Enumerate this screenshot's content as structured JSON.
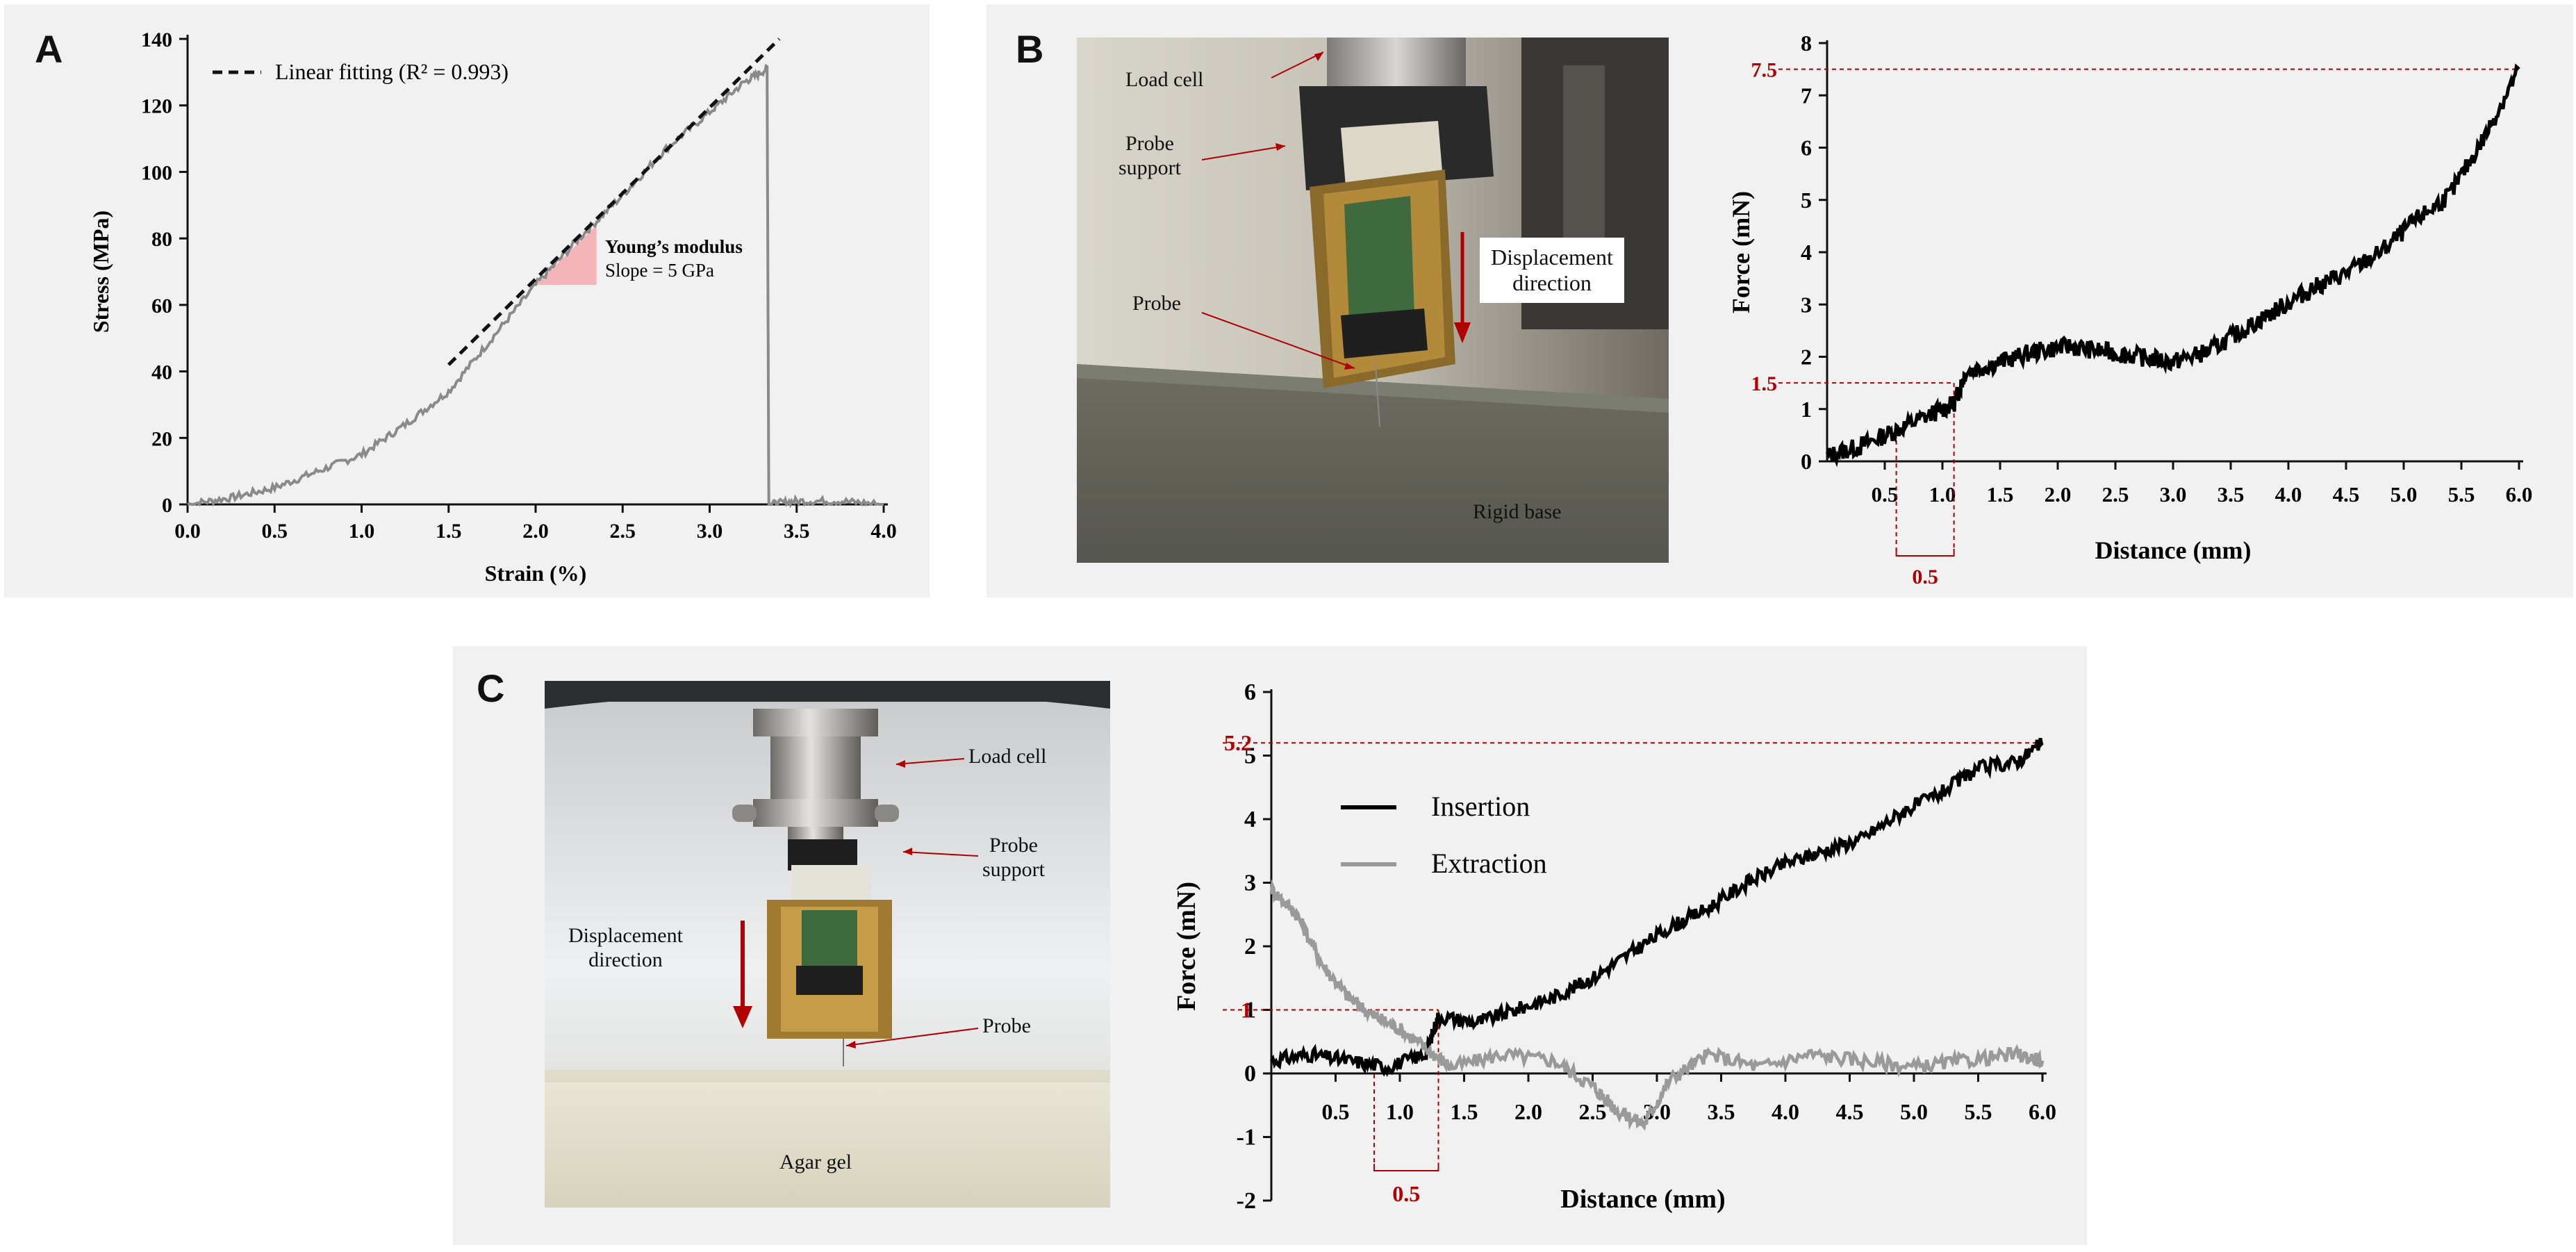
{
  "panels": {
    "a": "A",
    "b": "B",
    "c": "C"
  },
  "colors": {
    "accent_red": "#b00000",
    "fit_line": "#111111",
    "stress_curve": "#8a8a8a",
    "insertion": "#000000",
    "extraction": "#9a9a9a",
    "wedge": "#f4b5b8"
  },
  "photo_b": {
    "load_cell": "Load cell",
    "probe_support_line1": "Probe",
    "probe_support_line2": "support",
    "probe": "Probe",
    "displacement_line1": "Displacement",
    "displacement_line2": "direction",
    "rigid_base": "Rigid base"
  },
  "photo_c": {
    "load_cell": "Load cell",
    "probe_support_line1": "Probe",
    "probe_support_line2": "support",
    "displacement_line1": "Displacement",
    "displacement_line2": "direction",
    "probe": "Probe",
    "agar_gel": "Agar gel"
  },
  "chart_data": [
    {
      "id": "A",
      "type": "line",
      "title": "",
      "xlabel": "Strain (%)",
      "ylabel": "Stress (MPa)",
      "xlim": [
        0,
        4.0
      ],
      "ylim": [
        0,
        140
      ],
      "xticks": [
        "0.0",
        "0.5",
        "1.0",
        "1.5",
        "2.0",
        "2.5",
        "3.0",
        "3.5",
        "4.0"
      ],
      "yticks": [
        "0",
        "20",
        "40",
        "60",
        "80",
        "100",
        "120",
        "140"
      ],
      "legend": {
        "position": "top-left",
        "entries": [
          "Linear fitting (R² = 0.993)"
        ]
      },
      "annotation": {
        "title": "Young’s modulus",
        "subtitle": "Slope = 5 GPa"
      },
      "fit_line": {
        "x": [
          1.5,
          3.4
        ],
        "y": [
          42,
          140
        ]
      },
      "series": [
        {
          "x": [
            0.0,
            0.25,
            0.5,
            0.75,
            1.0,
            1.25,
            1.5,
            1.75,
            2.0,
            2.25,
            2.5,
            2.75,
            3.0,
            3.2,
            3.33,
            3.34,
            3.5,
            3.75,
            4.0
          ],
          "y": [
            0,
            2,
            5,
            10,
            15,
            24,
            34,
            50,
            66,
            80,
            93,
            107,
            118,
            127,
            131,
            0,
            1,
            1,
            0
          ]
        }
      ]
    },
    {
      "id": "B",
      "type": "line",
      "title": "",
      "xlabel": "Distance (mm)",
      "ylabel": "Force (mN)",
      "xlim": [
        0,
        6.0
      ],
      "ylim": [
        0,
        8
      ],
      "xticks": [
        "0.5",
        "1.0",
        "1.5",
        "2.0",
        "2.5",
        "3.0",
        "3.5",
        "4.0",
        "4.5",
        "5.0",
        "5.5",
        "6.0"
      ],
      "yticks": [
        "0",
        "1",
        "2",
        "3",
        "4",
        "5",
        "6",
        "7",
        "8"
      ],
      "hlines": [
        {
          "y": 7.5,
          "label": "7.5"
        },
        {
          "y": 1.5,
          "label": "1.5"
        }
      ],
      "span": {
        "x0": 0.6,
        "x1": 1.1,
        "label": "0.5"
      },
      "series": [
        {
          "x": [
            0.0,
            0.3,
            0.6,
            0.9,
            1.1,
            1.2,
            1.5,
            1.8,
            2.1,
            2.4,
            2.7,
            3.0,
            3.3,
            3.6,
            3.9,
            4.2,
            4.5,
            4.8,
            5.1,
            5.4,
            5.7,
            6.0
          ],
          "y": [
            0.1,
            0.3,
            0.6,
            0.9,
            1.1,
            1.7,
            1.9,
            2.1,
            2.2,
            2.1,
            2.0,
            1.9,
            2.1,
            2.5,
            2.9,
            3.3,
            3.6,
            4.0,
            4.6,
            5.1,
            6.2,
            7.5
          ]
        }
      ]
    },
    {
      "id": "C",
      "type": "line",
      "title": "",
      "xlabel": "Distance (mm)",
      "ylabel": "Force (mN)",
      "xlim": [
        0,
        6.0
      ],
      "ylim": [
        -2,
        6
      ],
      "xticks": [
        "0.5",
        "1.0",
        "1.5",
        "2.0",
        "2.5",
        "3.0",
        "3.5",
        "4.0",
        "4.5",
        "5.0",
        "5.5",
        "6.0"
      ],
      "yticks": [
        "-2",
        "-1",
        "0",
        "1",
        "2",
        "3",
        "4",
        "5",
        "6"
      ],
      "hlines": [
        {
          "y": 5.2,
          "label": "5.2"
        },
        {
          "y": 1,
          "label": "1"
        }
      ],
      "span": {
        "x0": 0.8,
        "x1": 1.3,
        "label": "0.5"
      },
      "legend": {
        "position": "center-left"
      },
      "series": [
        {
          "name": "Insertion",
          "x": [
            0.0,
            0.3,
            0.6,
            0.9,
            1.2,
            1.3,
            1.6,
            1.9,
            2.2,
            2.5,
            2.8,
            3.1,
            3.4,
            3.7,
            4.0,
            4.3,
            4.6,
            4.9,
            5.2,
            5.5,
            5.8,
            6.0
          ],
          "y": [
            0.2,
            0.3,
            0.2,
            0.1,
            0.3,
            0.9,
            0.8,
            1.0,
            1.2,
            1.5,
            1.9,
            2.3,
            2.6,
            3.0,
            3.3,
            3.5,
            3.7,
            4.1,
            4.4,
            4.8,
            4.9,
            5.2
          ]
        },
        {
          "name": "Extraction",
          "x": [
            0.0,
            0.2,
            0.4,
            0.6,
            0.8,
            1.0,
            1.2,
            1.4,
            1.8,
            2.2,
            2.5,
            2.7,
            2.9,
            3.1,
            3.4,
            3.8,
            4.2,
            4.6,
            5.0,
            5.4,
            5.8,
            6.0
          ],
          "y": [
            2.9,
            2.5,
            1.7,
            1.2,
            0.9,
            0.7,
            0.4,
            0.1,
            0.3,
            0.2,
            -0.2,
            -0.6,
            -0.8,
            -0.1,
            0.3,
            0.1,
            0.3,
            0.2,
            0.1,
            0.2,
            0.3,
            0.2
          ]
        }
      ]
    }
  ]
}
